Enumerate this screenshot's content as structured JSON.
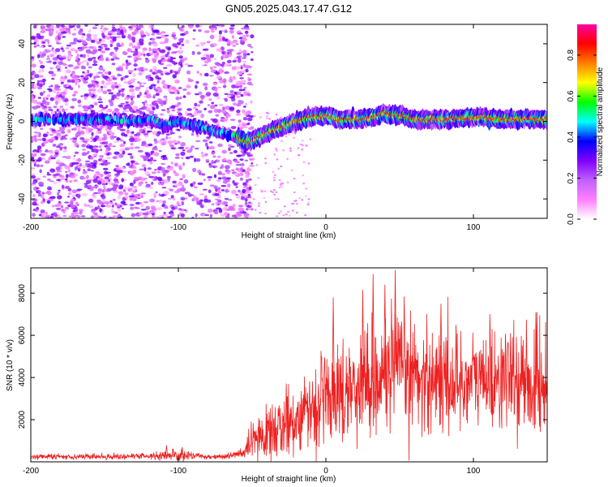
{
  "page": {
    "title": "GN05.2025.043.17.47.G12"
  },
  "chart_data": [
    {
      "type": "heatmap",
      "title": "GN05.2025.043.17.47.G12",
      "xlabel": "Height of straight line (km)",
      "ylabel": "Frequency (Hz)",
      "xlim": [
        -200,
        150
      ],
      "ylim": [
        -50,
        50
      ],
      "xticks": [
        -200,
        -100,
        0,
        100
      ],
      "yticks": [
        -40,
        -20,
        0,
        20,
        40
      ],
      "colorbar": {
        "label": "Normalized spectral amplitude",
        "range": [
          0.0,
          0.95
        ],
        "ticks": [
          0.0,
          0.2,
          0.4,
          0.6,
          0.8
        ],
        "colormap": [
          "#ffffff",
          "#ff80ff",
          "#c060ff",
          "#7f00ff",
          "#0000ff",
          "#00ffff",
          "#00ff00",
          "#ffff00",
          "#ff8000",
          "#ff0000",
          "#ff00a0"
        ]
      },
      "ridge": {
        "x": [
          -200,
          -190,
          -150,
          -130,
          -120,
          -110,
          -100,
          -90,
          -80,
          -70,
          -60,
          -55,
          -50,
          -40,
          -30,
          -20,
          -10,
          0,
          10,
          20,
          30,
          40,
          50,
          60,
          80,
          100,
          120,
          150
        ],
        "y": [
          1,
          1,
          1,
          0,
          1,
          -2,
          0,
          -2,
          -4,
          -6,
          -8,
          -11,
          -10,
          -6,
          -3,
          0,
          2,
          3,
          1,
          1,
          2,
          4,
          3,
          1,
          1,
          2,
          1,
          1
        ]
      },
      "noise_region_x": [
        -200,
        -55
      ],
      "signal_region_x": [
        -55,
        150
      ]
    },
    {
      "type": "line",
      "xlabel": "Height of straight line (km)",
      "ylabel": "SNR (10 * v/v)",
      "xlim": [
        -200,
        150
      ],
      "ylim": [
        0,
        9200
      ],
      "xticks": [
        -200,
        -100,
        0,
        100
      ],
      "yticks": [
        2000,
        4000,
        6000,
        8000
      ],
      "color": "#ee2020",
      "envelope": {
        "x": [
          -200,
          -150,
          -120,
          -100,
          -90,
          -80,
          -70,
          -60,
          -55,
          -50,
          -40,
          -30,
          -20,
          -10,
          0,
          10,
          20,
          30,
          40,
          50,
          60,
          70,
          80,
          90,
          100,
          110,
          120,
          130,
          140,
          150
        ],
        "mean": [
          250,
          250,
          270,
          300,
          300,
          250,
          250,
          350,
          450,
          900,
          1300,
          1700,
          2100,
          2500,
          3000,
          3300,
          3600,
          3900,
          4200,
          4300,
          4200,
          4000,
          3900,
          3800,
          3900,
          4000,
          4000,
          3800,
          3700,
          3600
        ],
        "spread": [
          80,
          80,
          100,
          200,
          100,
          80,
          80,
          120,
          200,
          600,
          800,
          900,
          1000,
          1100,
          1300,
          1400,
          1500,
          1700,
          1800,
          1800,
          1700,
          1600,
          1600,
          1500,
          1500,
          1500,
          1500,
          1500,
          1500,
          1500
        ]
      },
      "peaks": [
        {
          "x": -108,
          "y": 780
        },
        {
          "x": 5,
          "y": 7800
        },
        {
          "x": 25,
          "y": 8150
        },
        {
          "x": 32,
          "y": 8900
        },
        {
          "x": 40,
          "y": 8400
        },
        {
          "x": 47,
          "y": 9100
        },
        {
          "x": 78,
          "y": 7500
        },
        {
          "x": 143,
          "y": 7100
        }
      ]
    }
  ]
}
